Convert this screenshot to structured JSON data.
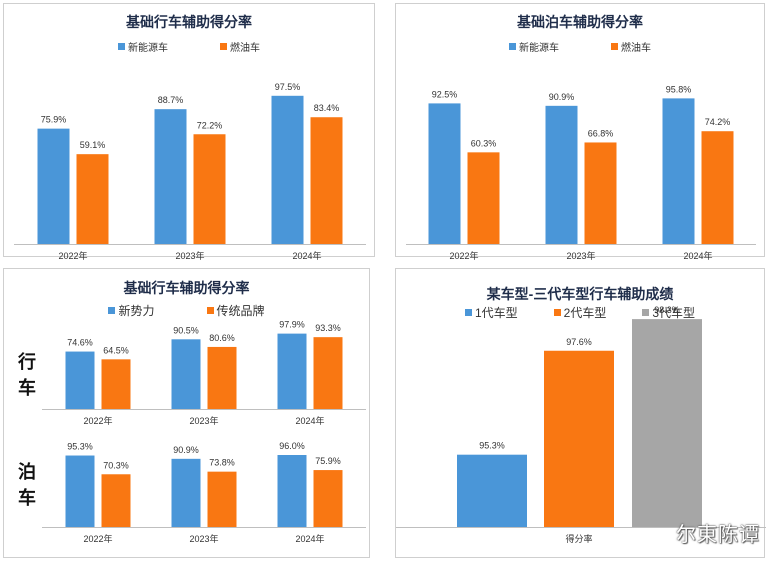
{
  "colors": {
    "new_energy": "#4a96d8",
    "fuel": "#f97712",
    "gen3": "#a6a6a6",
    "axis": "#bfbfbf"
  },
  "panels": {
    "tl": {
      "title": "基础行车辅助得分率",
      "legend": [
        "新能源车",
        "燃油车"
      ]
    },
    "tr": {
      "title": "基础泊车辅助得分率",
      "legend": [
        "新能源车",
        "燃油车"
      ]
    },
    "bl": {
      "title": "基础行车辅助得分率",
      "legend": [
        "新势力",
        "传统品牌"
      ],
      "row_labels": [
        "行车",
        "泊车"
      ]
    },
    "br": {
      "title": "某车型-三代车型行车辅助成绩",
      "legend": [
        "1代车型",
        "2代车型",
        "3代车型"
      ]
    }
  },
  "watermark": "尔東陈谭",
  "chart_data": [
    {
      "type": "bar",
      "title": "基础行车辅助得分率",
      "categories": [
        "2022年",
        "2023年",
        "2024年"
      ],
      "series": [
        {
          "name": "新能源车",
          "values": [
            75.9,
            88.7,
            97.5
          ],
          "labels": [
            "75.9%",
            "88.7%",
            "97.5%"
          ]
        },
        {
          "name": "燃油车",
          "values": [
            59.1,
            72.2,
            83.4
          ],
          "labels": [
            "59.1%",
            "72.2%",
            "83.4%"
          ]
        }
      ],
      "ylim": [
        0,
        100
      ],
      "grid": false,
      "legend": "top"
    },
    {
      "type": "bar",
      "title": "基础泊车辅助得分率",
      "categories": [
        "2022年",
        "2023年",
        "2024年"
      ],
      "series": [
        {
          "name": "新能源车",
          "values": [
            92.5,
            90.9,
            95.8
          ],
          "labels": [
            "92.5%",
            "90.9%",
            "95.8%"
          ]
        },
        {
          "name": "燃油车",
          "values": [
            60.3,
            66.8,
            74.2
          ],
          "labels": [
            "60.3%",
            "66.8%",
            "74.2%"
          ]
        }
      ],
      "ylim": [
        0,
        100
      ],
      "grid": false,
      "legend": "top"
    },
    {
      "type": "bar",
      "title": "基础行车辅助得分率",
      "row": "行车",
      "categories": [
        "2022年",
        "2023年",
        "2024年"
      ],
      "series": [
        {
          "name": "新势力",
          "values": [
            74.6,
            90.5,
            97.9
          ],
          "labels": [
            "74.6%",
            "90.5%",
            "97.9%"
          ]
        },
        {
          "name": "传统品牌",
          "values": [
            64.5,
            80.6,
            93.3
          ],
          "labels": [
            "64.5%",
            "80.6%",
            "93.3%"
          ]
        }
      ],
      "ylim": [
        0,
        100
      ],
      "grid": false,
      "legend": "top"
    },
    {
      "type": "bar",
      "row": "泊车",
      "categories": [
        "2022年",
        "2023年",
        "2024年"
      ],
      "series": [
        {
          "name": "新势力",
          "values": [
            95.3,
            90.9,
            96.0
          ],
          "labels": [
            "95.3%",
            "90.9%",
            "96.0%"
          ]
        },
        {
          "name": "传统品牌",
          "values": [
            70.3,
            73.8,
            75.9
          ],
          "labels": [
            "70.3%",
            "73.8%",
            "75.9%"
          ]
        }
      ],
      "ylim": [
        0,
        100
      ],
      "grid": false
    },
    {
      "type": "bar",
      "title": "某车型-三代车型行车辅助成绩",
      "categories": [
        "得分率"
      ],
      "series": [
        {
          "name": "1代车型",
          "values": [
            95.3
          ],
          "labels": [
            "95.3%"
          ]
        },
        {
          "name": "2代车型",
          "values": [
            97.6
          ],
          "labels": [
            "97.6%"
          ]
        },
        {
          "name": "3代车型",
          "values": [
            98.3
          ],
          "labels": [
            "98.3%"
          ]
        }
      ],
      "ylim": [
        93.7,
        98.9
      ],
      "grid": false,
      "legend": "top"
    }
  ]
}
